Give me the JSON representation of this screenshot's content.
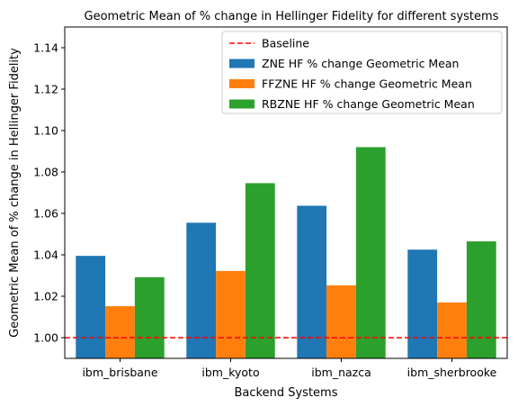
{
  "chart_data": {
    "type": "bar",
    "title": "Geometric Mean of % change in Hellinger Fidelity for different systems",
    "xlabel": "Backend Systems",
    "ylabel": "Geometric Mean of % change in Hellinger Fidelity",
    "categories": [
      "ibm_brisbane",
      "ibm_kyoto",
      "ibm_nazca",
      "ibm_sherbrooke"
    ],
    "ylim": [
      0.99,
      1.15
    ],
    "yticks": [
      "1.00",
      "1.02",
      "1.04",
      "1.06",
      "1.08",
      "1.10",
      "1.12",
      "1.14"
    ],
    "series": [
      {
        "name": "ZNE HF % change Geometric Mean",
        "color": "#1f77b4",
        "values": [
          1.0395,
          1.0555,
          1.0637,
          1.0425
        ]
      },
      {
        "name": "FFZNE HF % change Geometric Mean",
        "color": "#ff7f0e",
        "values": [
          1.0152,
          1.0322,
          1.0253,
          1.017
        ]
      },
      {
        "name": "RBZNE HF % change Geometric Mean",
        "color": "#2ca02c",
        "values": [
          1.0292,
          1.0746,
          1.092,
          1.0465
        ]
      }
    ],
    "baseline": {
      "name": "Baseline",
      "value": 1.0,
      "color": "#ff0000",
      "style": "dashed"
    },
    "legend_position": "top-right",
    "grid": false
  }
}
